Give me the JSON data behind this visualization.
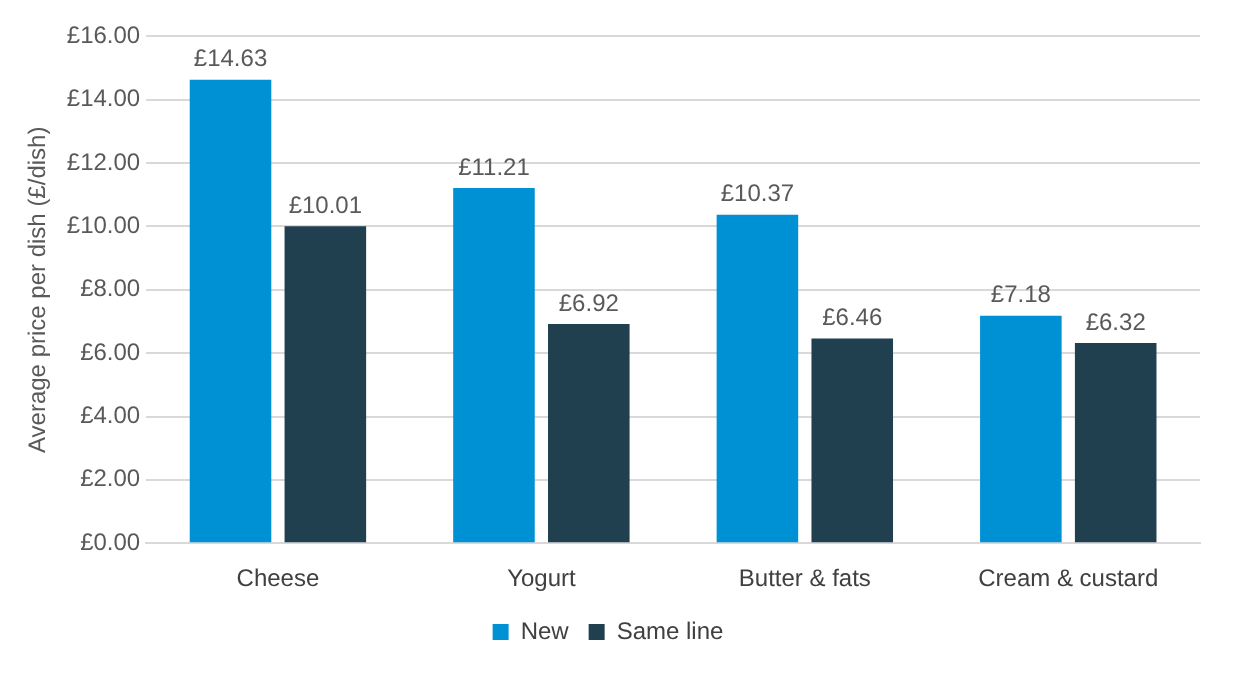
{
  "chart_data": {
    "type": "bar",
    "ylabel": "Average price per dish (£/dish)",
    "categories": [
      "Cheese",
      "Yogurt",
      "Butter & fats",
      "Cream & custard"
    ],
    "series": [
      {
        "name": "New",
        "color": "#0090d4",
        "values": [
          14.63,
          11.21,
          10.37,
          7.18
        ],
        "value_labels": [
          "£14.63",
          "£11.21",
          "£10.37",
          "£7.18"
        ]
      },
      {
        "name": "Same line",
        "color": "#203f4f",
        "values": [
          10.01,
          6.92,
          6.46,
          6.32
        ],
        "value_labels": [
          "£10.01",
          "£6.92",
          "£6.46",
          "£6.32"
        ]
      }
    ],
    "ylim": [
      0,
      16
    ],
    "yticks": [
      {
        "value": 0,
        "label": "£0.00"
      },
      {
        "value": 2,
        "label": "£2.00"
      },
      {
        "value": 4,
        "label": "£4.00"
      },
      {
        "value": 6,
        "label": "£6.00"
      },
      {
        "value": 8,
        "label": "£8.00"
      },
      {
        "value": 10,
        "label": "£10.00"
      },
      {
        "value": 12,
        "label": "£12.00"
      },
      {
        "value": 14,
        "label": "£14.00"
      },
      {
        "value": 16,
        "label": "£16.00"
      }
    ],
    "grid": "y",
    "legend": "bottom"
  }
}
